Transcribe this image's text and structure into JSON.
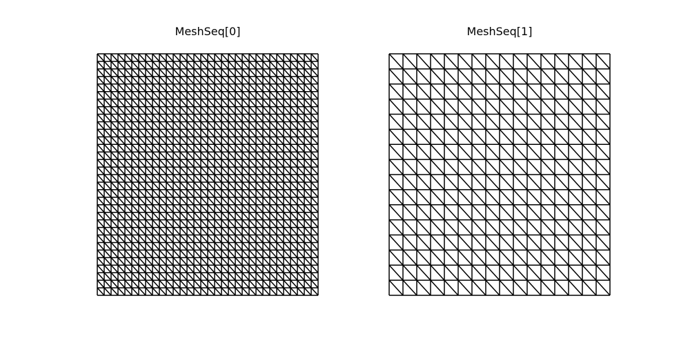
{
  "figure": {
    "panels": [
      {
        "title": "MeshSeq[0]",
        "nx": 32,
        "ny": 32,
        "diagonal": "top-left-to-bottom-right"
      },
      {
        "title": "MeshSeq[1]",
        "nx": 16,
        "ny": 16,
        "diagonal": "top-left-to-bottom-right"
      }
    ],
    "line_color": "#000000",
    "background": "#ffffff"
  }
}
